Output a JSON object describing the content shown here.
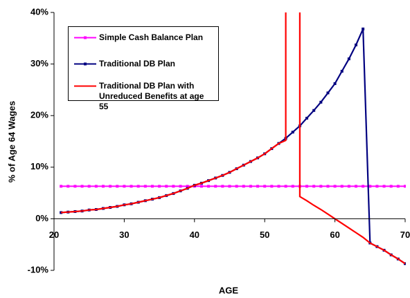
{
  "chart_data": {
    "type": "line",
    "xlabel": "AGE",
    "ylabel": "% of Age 64 Wages",
    "x": [
      21,
      22,
      23,
      24,
      25,
      26,
      27,
      28,
      29,
      30,
      31,
      32,
      33,
      34,
      35,
      36,
      37,
      38,
      39,
      40,
      41,
      42,
      43,
      44,
      45,
      46,
      47,
      48,
      49,
      50,
      51,
      52,
      53,
      54,
      55,
      56,
      57,
      58,
      59,
      60,
      61,
      62,
      63,
      64,
      65,
      66,
      67,
      68,
      69,
      70
    ],
    "series": [
      {
        "name": "Simple Cash Balance Plan",
        "color": "#ff00ff",
        "marker": true,
        "values": [
          6.3,
          6.3,
          6.3,
          6.3,
          6.3,
          6.3,
          6.3,
          6.3,
          6.3,
          6.3,
          6.3,
          6.3,
          6.3,
          6.3,
          6.3,
          6.3,
          6.3,
          6.3,
          6.3,
          6.3,
          6.3,
          6.3,
          6.3,
          6.3,
          6.3,
          6.3,
          6.3,
          6.3,
          6.3,
          6.3,
          6.3,
          6.3,
          6.3,
          6.3,
          6.3,
          6.3,
          6.3,
          6.3,
          6.3,
          6.3,
          6.3,
          6.3,
          6.3,
          6.3,
          6.3,
          6.3,
          6.3,
          6.3,
          6.3,
          6.3
        ]
      },
      {
        "name": "Traditional DB Plan",
        "color": "#000080",
        "marker": true,
        "values": [
          1.2,
          1.3,
          1.4,
          1.5,
          1.7,
          1.8,
          2.0,
          2.2,
          2.4,
          2.7,
          2.9,
          3.2,
          3.5,
          3.8,
          4.1,
          4.5,
          4.9,
          5.4,
          5.9,
          6.5,
          6.9,
          7.4,
          7.9,
          8.4,
          9.0,
          9.7,
          10.4,
          11.1,
          11.8,
          12.6,
          13.6,
          14.6,
          15.6,
          16.8,
          18.0,
          19.5,
          21.0,
          22.6,
          24.4,
          26.2,
          28.6,
          31.0,
          33.7,
          36.8,
          -4.7,
          -5.4,
          -6.1,
          -7.0,
          -7.8,
          -8.7
        ]
      },
      {
        "name": "Traditional DB Plan with Unreduced Benefits at age 55",
        "color": "#ff0000",
        "marker": false,
        "x": [
          21,
          22,
          23,
          24,
          25,
          26,
          27,
          28,
          29,
          30,
          31,
          32,
          33,
          34,
          35,
          36,
          37,
          38,
          39,
          40,
          41,
          42,
          43,
          44,
          45,
          46,
          47,
          48,
          49,
          50,
          51,
          52,
          53,
          53,
          55,
          55,
          56,
          57,
          58,
          59,
          60,
          61,
          62,
          63,
          64,
          65,
          66,
          67,
          68,
          69,
          70
        ],
        "values": [
          1.2,
          1.3,
          1.4,
          1.5,
          1.7,
          1.8,
          2.0,
          2.2,
          2.4,
          2.7,
          2.9,
          3.2,
          3.5,
          3.8,
          4.1,
          4.5,
          4.9,
          5.4,
          5.9,
          6.5,
          6.9,
          7.4,
          7.9,
          8.4,
          9.0,
          9.7,
          10.4,
          11.1,
          11.8,
          12.6,
          13.6,
          14.6,
          15.2,
          60,
          60,
          4.3,
          3.5,
          2.6,
          1.8,
          0.9,
          0.0,
          -0.9,
          -1.8,
          -2.7,
          -3.6,
          -4.7,
          -5.4,
          -6.1,
          -7.0,
          -7.8,
          -8.7
        ]
      }
    ],
    "xlim": [
      20,
      70
    ],
    "xticks": [
      20,
      30,
      40,
      50,
      60,
      70
    ],
    "ylim": [
      -10,
      40
    ],
    "yticks": [
      {
        "value": -10,
        "label": "-10%"
      },
      {
        "value": 0,
        "label": "0%"
      },
      {
        "value": 10,
        "label": "10%"
      },
      {
        "value": 20,
        "label": "20%"
      },
      {
        "value": 30,
        "label": "30%"
      },
      {
        "value": 40,
        "label": "40%"
      }
    ]
  }
}
